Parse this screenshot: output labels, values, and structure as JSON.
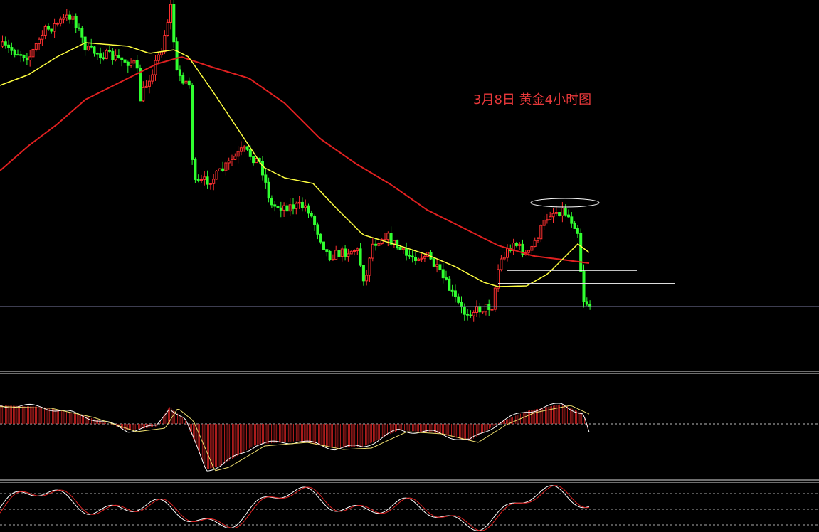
{
  "title": "3月8日 黄金4小时图"
}
